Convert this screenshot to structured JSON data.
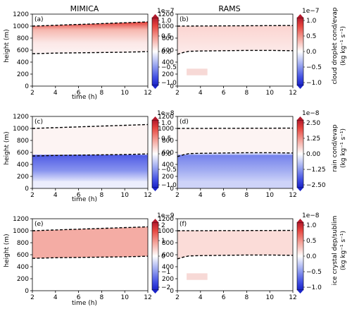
{
  "figure": {
    "column_titles": [
      "MIMICA",
      "RAMS"
    ],
    "rows": [
      {
        "ylabel": "height (m)",
        "xlabel": "time (h)",
        "colorbar_label": "cloud droplet cond/evap",
        "colorbar_units": "(kg kg⁻¹ s⁻¹)",
        "colorbar_exponent": "1e−7",
        "colorbar_ticks": [
          "1.0",
          "0.5",
          "0.0",
          "−0.5",
          "−1.0"
        ],
        "panels": [
          "(a)",
          "(b)"
        ]
      },
      {
        "ylabel": "height (m)",
        "xlabel": "time (h)",
        "colorbar_label": "rain cond/evap",
        "colorbar_units": "(kg kg⁻¹ s⁻¹)",
        "colorbar_exponent_left": "1e−8",
        "colorbar_exponent_right": "1e−8",
        "colorbar_ticks_left": [
          "1.0",
          "0.5",
          "0.0",
          "−0.5",
          "−1.0"
        ],
        "colorbar_ticks_right": [
          "2.50",
          "1.25",
          "0.00",
          "−1.25",
          "−2.50"
        ],
        "panels": [
          "(c)",
          "(d)"
        ]
      },
      {
        "ylabel": "height (m)",
        "xlabel": "time (h)",
        "colorbar_label": "ice crystal dep/sublim",
        "colorbar_units": "(kg kg⁻¹ s⁻¹)",
        "colorbar_exponent_left": "1e−9",
        "colorbar_exponent_right": "1e−8",
        "colorbar_ticks_left": [
          "2",
          "1",
          "0",
          "−1",
          "−2"
        ],
        "colorbar_ticks_right": [
          "1.0",
          "0.5",
          "0.0",
          "−0.5",
          "−1.0"
        ],
        "panels": [
          "(e)",
          "(f)"
        ]
      }
    ],
    "x_ticks": [
      "2",
      "4",
      "6",
      "8",
      "10",
      "12"
    ],
    "y_ticks": [
      "0",
      "200",
      "400",
      "600",
      "800",
      "1000",
      "1200"
    ]
  },
  "chart_data": {
    "type": "heatmap",
    "xlabel": "time (h)",
    "ylabel": "height (m)",
    "xlim": [
      2,
      12
    ],
    "ylim": [
      0,
      1200
    ],
    "colormap": "bwr",
    "panels": [
      {
        "label": "(a)",
        "model": "MIMICA",
        "variable": "cloud droplet cond/evap",
        "clim": [
          -1e-07,
          1e-07
        ],
        "top": {
          "x": [
            2,
            12
          ],
          "y": [
            1000,
            1070
          ]
        },
        "base": {
          "x": [
            2,
            4,
            6,
            8,
            10,
            12
          ],
          "y": [
            540,
            550,
            555,
            560,
            565,
            575
          ]
        }
      },
      {
        "label": "(b)",
        "model": "RAMS",
        "variable": "cloud droplet cond/evap",
        "clim": [
          -1e-07,
          1e-07
        ],
        "top": {
          "x": [
            2,
            12
          ],
          "y": [
            1000,
            1010
          ]
        },
        "base": {
          "x": [
            2,
            2.5,
            3,
            4,
            6,
            8,
            10,
            12
          ],
          "y": [
            530,
            560,
            580,
            585,
            590,
            595,
            595,
            590
          ]
        }
      },
      {
        "label": "(c)",
        "model": "MIMICA",
        "variable": "rain cond/evap",
        "clim": [
          -1e-08,
          1e-08
        ],
        "top": {
          "x": [
            2,
            12
          ],
          "y": [
            1000,
            1065
          ]
        },
        "base": {
          "x": [
            2,
            4,
            6,
            8,
            10,
            12
          ],
          "y": [
            540,
            550,
            555,
            560,
            565,
            575
          ]
        }
      },
      {
        "label": "(d)",
        "model": "RAMS",
        "variable": "rain cond/evap",
        "clim": [
          -2.5e-08,
          2.5e-08
        ],
        "top": {
          "x": [
            2,
            12
          ],
          "y": [
            1000,
            1005
          ]
        },
        "base": {
          "x": [
            2,
            2.5,
            3,
            4,
            6,
            8,
            10,
            12
          ],
          "y": [
            530,
            560,
            580,
            585,
            590,
            595,
            595,
            590
          ]
        }
      },
      {
        "label": "(e)",
        "model": "MIMICA",
        "variable": "ice crystal dep/sublim",
        "clim": [
          -2e-09,
          2e-09
        ],
        "top": {
          "x": [
            2,
            12
          ],
          "y": [
            1000,
            1065
          ]
        },
        "base": {
          "x": [
            2,
            4,
            6,
            8,
            10,
            12
          ],
          "y": [
            540,
            550,
            555,
            560,
            565,
            575
          ]
        }
      },
      {
        "label": "(f)",
        "model": "RAMS",
        "variable": "ice crystal dep/sublim",
        "clim": [
          -1e-08,
          1e-08
        ],
        "top": {
          "x": [
            2,
            12
          ],
          "y": [
            1000,
            1005
          ]
        },
        "base": {
          "x": [
            2,
            2.5,
            3,
            4,
            6,
            8,
            10,
            12
          ],
          "y": [
            530,
            560,
            580,
            585,
            590,
            595,
            595,
            590
          ]
        }
      }
    ]
  }
}
